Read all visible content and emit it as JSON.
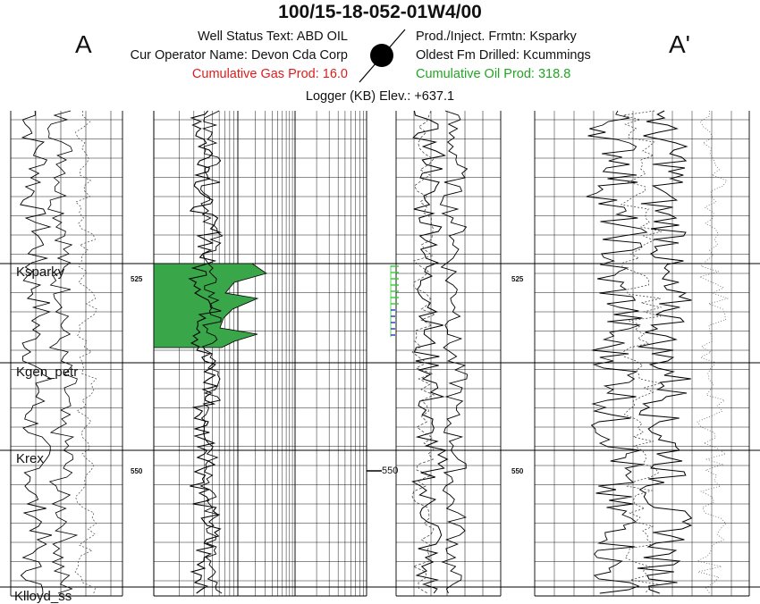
{
  "header": {
    "well_id": "100/15-18-052-01W4/00",
    "left_marker": "A",
    "right_marker": "A'",
    "well_status": "Well Status Text: ABD OIL",
    "operator": "Cur Operator Name: Devon Cda Corp",
    "cum_gas": "Cumulative Gas Prod: 16.0",
    "prod_formation": "Prod./Inject. Frmtn: Ksparky",
    "oldest_formation": "Oldest Fm Drilled: Kcummings",
    "cum_oil": "Cumulative Oil Prod: 318.8",
    "logger_elev": "Logger (KB) Elev.: +637.1"
  },
  "formations": [
    {
      "name": "Ksparky"
    },
    {
      "name": "Kgen_petr"
    },
    {
      "name": "Krex"
    },
    {
      "name": "Klloyd_ss"
    }
  ],
  "depth_labels": {
    "d525": "525",
    "d550": "550"
  },
  "colors": {
    "gas": "#e01b1b",
    "oil": "#22a522",
    "pay_fill": "#3aa64a",
    "perf": "#2233cc"
  }
}
